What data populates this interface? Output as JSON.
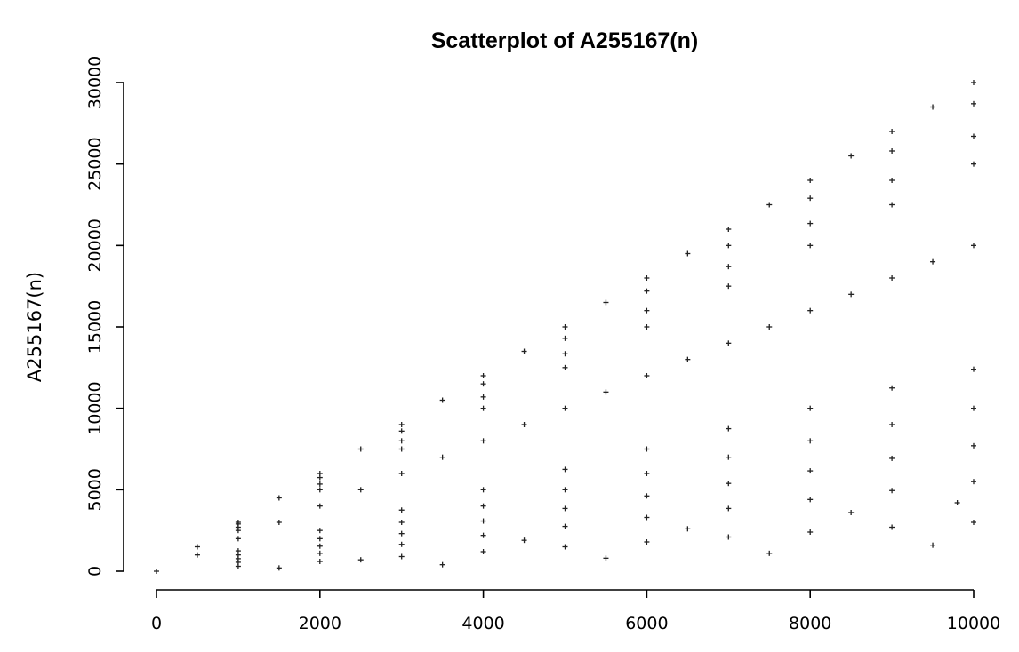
{
  "chart_data": {
    "type": "scatter",
    "title": "Scatterplot of A255167(n)",
    "xlabel": "",
    "ylabel": "A255167(n)",
    "xlim": [
      0,
      10000
    ],
    "ylim": [
      0,
      30000
    ],
    "x_ticks": [
      0,
      2000,
      4000,
      6000,
      8000,
      10000
    ],
    "y_ticks": [
      0,
      5000,
      10000,
      15000,
      20000,
      25000,
      30000
    ],
    "grid": false,
    "marker": "+",
    "point_color": "#222222",
    "series": [
      {
        "values": [
          [
            0,
            0
          ],
          [
            500,
            1500
          ],
          [
            1000,
            3000
          ],
          [
            1500,
            4500
          ],
          [
            2000,
            6000
          ],
          [
            2500,
            7500
          ],
          [
            3000,
            9000
          ],
          [
            3500,
            10500
          ],
          [
            4000,
            12000
          ],
          [
            4500,
            13500
          ],
          [
            5000,
            15000
          ],
          [
            5500,
            16500
          ],
          [
            6000,
            18000
          ],
          [
            6500,
            19500
          ],
          [
            7000,
            21000
          ],
          [
            7500,
            22500
          ],
          [
            8000,
            24000
          ],
          [
            8500,
            25500
          ],
          [
            9000,
            27000
          ],
          [
            9500,
            28500
          ],
          [
            10000,
            30000
          ],
          [
            1000,
            2900
          ],
          [
            2000,
            5750
          ],
          [
            3000,
            8600
          ],
          [
            4000,
            11500
          ],
          [
            5000,
            14300
          ],
          [
            6000,
            17200
          ],
          [
            7000,
            20000
          ],
          [
            8000,
            22900
          ],
          [
            9000,
            25800
          ],
          [
            10000,
            28700
          ],
          [
            1000,
            2700
          ],
          [
            2000,
            5350
          ],
          [
            3000,
            8000
          ],
          [
            4000,
            10700
          ],
          [
            5000,
            13350
          ],
          [
            6000,
            16000
          ],
          [
            7000,
            18700
          ],
          [
            8000,
            21350
          ],
          [
            9000,
            24000
          ],
          [
            10000,
            26700
          ],
          [
            1000,
            2500
          ],
          [
            2000,
            5000
          ],
          [
            3000,
            7500
          ],
          [
            4000,
            10000
          ],
          [
            5000,
            12500
          ],
          [
            6000,
            15000
          ],
          [
            7000,
            17500
          ],
          [
            8000,
            20000
          ],
          [
            9000,
            22500
          ],
          [
            10000,
            25000
          ],
          [
            500,
            1000
          ],
          [
            1000,
            2000
          ],
          [
            1500,
            3000
          ],
          [
            2000,
            4000
          ],
          [
            2500,
            5000
          ],
          [
            3000,
            6000
          ],
          [
            3500,
            7000
          ],
          [
            4000,
            8000
          ],
          [
            4500,
            9000
          ],
          [
            5000,
            10000
          ],
          [
            5500,
            11000
          ],
          [
            6000,
            12000
          ],
          [
            6500,
            13000
          ],
          [
            7000,
            14000
          ],
          [
            7500,
            15000
          ],
          [
            8000,
            16000
          ],
          [
            8500,
            17000
          ],
          [
            9000,
            18000
          ],
          [
            9500,
            19000
          ],
          [
            10000,
            20000
          ],
          [
            1000,
            1250
          ],
          [
            2000,
            2500
          ],
          [
            3000,
            3750
          ],
          [
            4000,
            5000
          ],
          [
            5000,
            6250
          ],
          [
            6000,
            7500
          ],
          [
            7000,
            8750
          ],
          [
            8000,
            10000
          ],
          [
            9000,
            11250
          ],
          [
            10000,
            12400
          ],
          [
            1000,
            1000
          ],
          [
            2000,
            2000
          ],
          [
            3000,
            3000
          ],
          [
            4000,
            4000
          ],
          [
            5000,
            5000
          ],
          [
            6000,
            6000
          ],
          [
            7000,
            7000
          ],
          [
            8000,
            8000
          ],
          [
            9000,
            9000
          ],
          [
            10000,
            10000
          ],
          [
            1000,
            770
          ],
          [
            2000,
            1540
          ],
          [
            3000,
            2310
          ],
          [
            4000,
            3080
          ],
          [
            5000,
            3850
          ],
          [
            6000,
            4620
          ],
          [
            7000,
            5390
          ],
          [
            8000,
            6160
          ],
          [
            9000,
            6930
          ],
          [
            10000,
            7700
          ],
          [
            1000,
            550
          ],
          [
            2000,
            1100
          ],
          [
            3000,
            1650
          ],
          [
            4000,
            2200
          ],
          [
            5000,
            2750
          ],
          [
            6000,
            3300
          ],
          [
            7000,
            3850
          ],
          [
            8000,
            4400
          ],
          [
            9000,
            4950
          ],
          [
            10000,
            5500
          ],
          [
            1000,
            300
          ],
          [
            2000,
            600
          ],
          [
            3000,
            900
          ],
          [
            4000,
            1200
          ],
          [
            5000,
            1500
          ],
          [
            6000,
            1800
          ],
          [
            7000,
            2100
          ],
          [
            8000,
            2400
          ],
          [
            9000,
            2700
          ],
          [
            10000,
            3000
          ],
          [
            1500,
            200
          ],
          [
            2500,
            700
          ],
          [
            3500,
            400
          ],
          [
            4500,
            1900
          ],
          [
            5500,
            800
          ],
          [
            6500,
            2600
          ],
          [
            7500,
            1100
          ],
          [
            8500,
            3600
          ],
          [
            9500,
            1600
          ],
          [
            9800,
            4200
          ]
        ]
      }
    ]
  }
}
